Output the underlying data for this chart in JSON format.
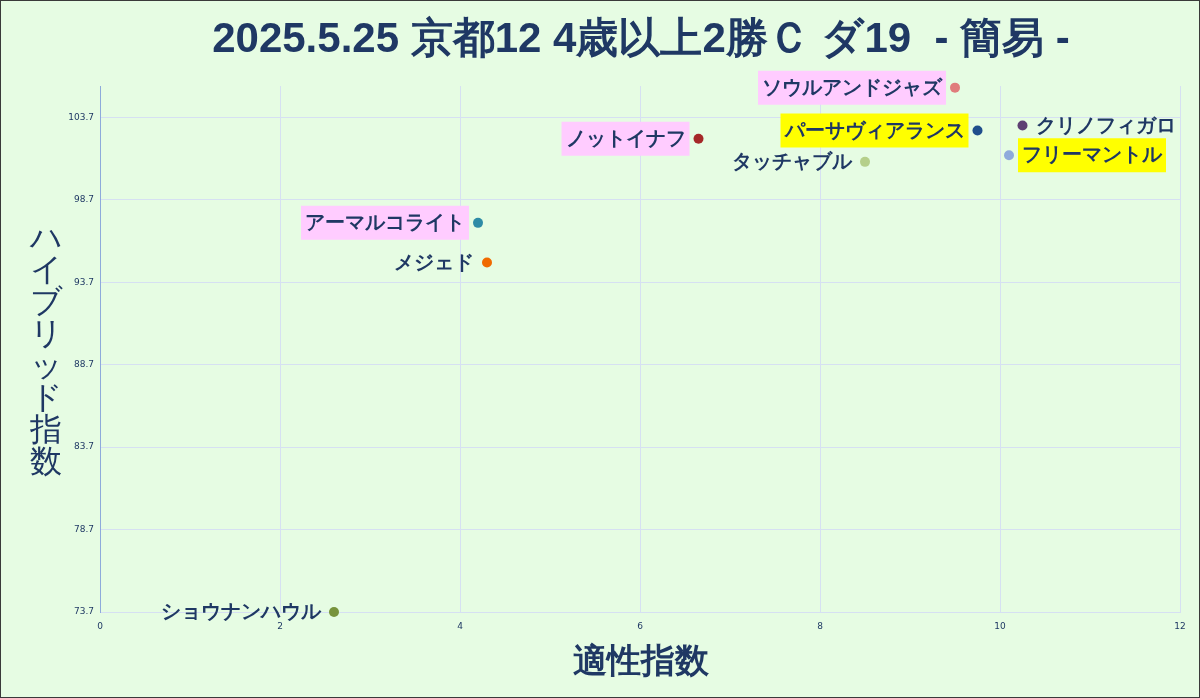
{
  "chart_data": {
    "type": "scatter",
    "title": "2025.5.25 京都12 4歳以上2勝Ｃ ダ19  - 簡易 -",
    "xlabel": "適性指数",
    "ylabel": "ハイブリッド指数",
    "xlim": [
      0,
      12
    ],
    "xticks": [
      0,
      2,
      4,
      6,
      8,
      10,
      12
    ],
    "ylim": [
      73.7,
      105.6
    ],
    "yticks": [
      73.7,
      78.7,
      83.7,
      88.7,
      93.7,
      98.7,
      103.7
    ],
    "grid": true,
    "marker": "circle",
    "series": [
      {
        "name": "ソウルアンドジャズ",
        "color": "#e07c7c",
        "x": [
          9.5
        ],
        "values": [
          105.5
        ]
      },
      {
        "name": "クリノフィガロ",
        "color": "#5e3f73",
        "x": [
          10.25
        ],
        "values": [
          103.2
        ]
      },
      {
        "name": "パーサヴィアランス",
        "color": "#1f4e8c",
        "x": [
          9.75
        ],
        "values": [
          102.9
        ]
      },
      {
        "name": "ノットイナフ",
        "color": "#a52828",
        "x": [
          6.65
        ],
        "values": [
          102.4
        ]
      },
      {
        "name": "フリーマントル",
        "color": "#8eaadc",
        "x": [
          10.1
        ],
        "values": [
          101.4
        ]
      },
      {
        "name": "タッチャブル",
        "color": "#b5cf8a",
        "x": [
          8.5
        ],
        "values": [
          101.0
        ]
      },
      {
        "name": "アーマルコライト",
        "color": "#2e8ba6",
        "x": [
          4.2
        ],
        "values": [
          97.3
        ]
      },
      {
        "name": "メジェド",
        "color": "#f06a00",
        "x": [
          4.3
        ],
        "values": [
          94.9
        ]
      },
      {
        "name": "ショウナンハウル",
        "color": "#77933c",
        "x": [
          2.6
        ],
        "values": [
          73.7
        ]
      }
    ]
  }
}
